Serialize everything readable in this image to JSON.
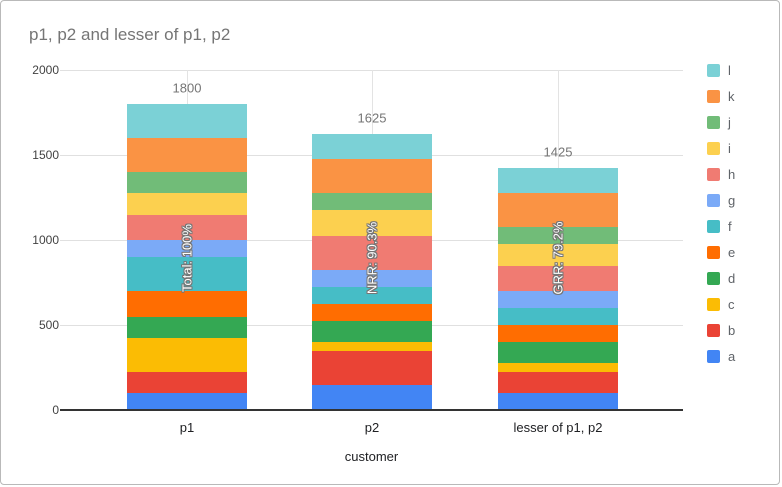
{
  "chart_data": {
    "type": "bar",
    "stacked": true,
    "title": "p1, p2 and lesser of p1, p2",
    "xlabel": "customer",
    "ylabel": "",
    "ylim": [
      0,
      2000
    ],
    "y_ticks": [
      0,
      500,
      1000,
      1500,
      2000
    ],
    "grid": true,
    "legend_position": "right",
    "categories": [
      "p1",
      "p2",
      "lesser of p1, p2"
    ],
    "series": [
      {
        "name": "a",
        "color": "#4285F4",
        "values": [
          100,
          150,
          100
        ]
      },
      {
        "name": "b",
        "color": "#EA4335",
        "values": [
          125,
          200,
          125
        ]
      },
      {
        "name": "c",
        "color": "#FBBC04",
        "values": [
          200,
          50,
          50
        ]
      },
      {
        "name": "d",
        "color": "#34A853",
        "values": [
          125,
          125,
          125
        ]
      },
      {
        "name": "e",
        "color": "#FF6D01",
        "values": [
          150,
          100,
          100
        ]
      },
      {
        "name": "f",
        "color": "#46BDC6",
        "values": [
          200,
          100,
          100
        ]
      },
      {
        "name": "g",
        "color": "#7BAAF7",
        "values": [
          100,
          100,
          100
        ]
      },
      {
        "name": "h",
        "color": "#F07B72",
        "values": [
          150,
          200,
          150
        ]
      },
      {
        "name": "i",
        "color": "#FCD04F",
        "values": [
          125,
          150,
          125
        ]
      },
      {
        "name": "j",
        "color": "#71BC78",
        "values": [
          125,
          100,
          100
        ]
      },
      {
        "name": "k",
        "color": "#FA9344",
        "values": [
          200,
          200,
          200
        ]
      },
      {
        "name": "l",
        "color": "#7BD1D6",
        "values": [
          200,
          150,
          150
        ]
      }
    ],
    "totals": [
      1800,
      1625,
      1425
    ],
    "total_labels": [
      "1800",
      "1625",
      "1425"
    ],
    "bar_annotations": [
      "Total: 100%",
      "NRR: 90.3%",
      "GRR: 79.2%"
    ]
  }
}
